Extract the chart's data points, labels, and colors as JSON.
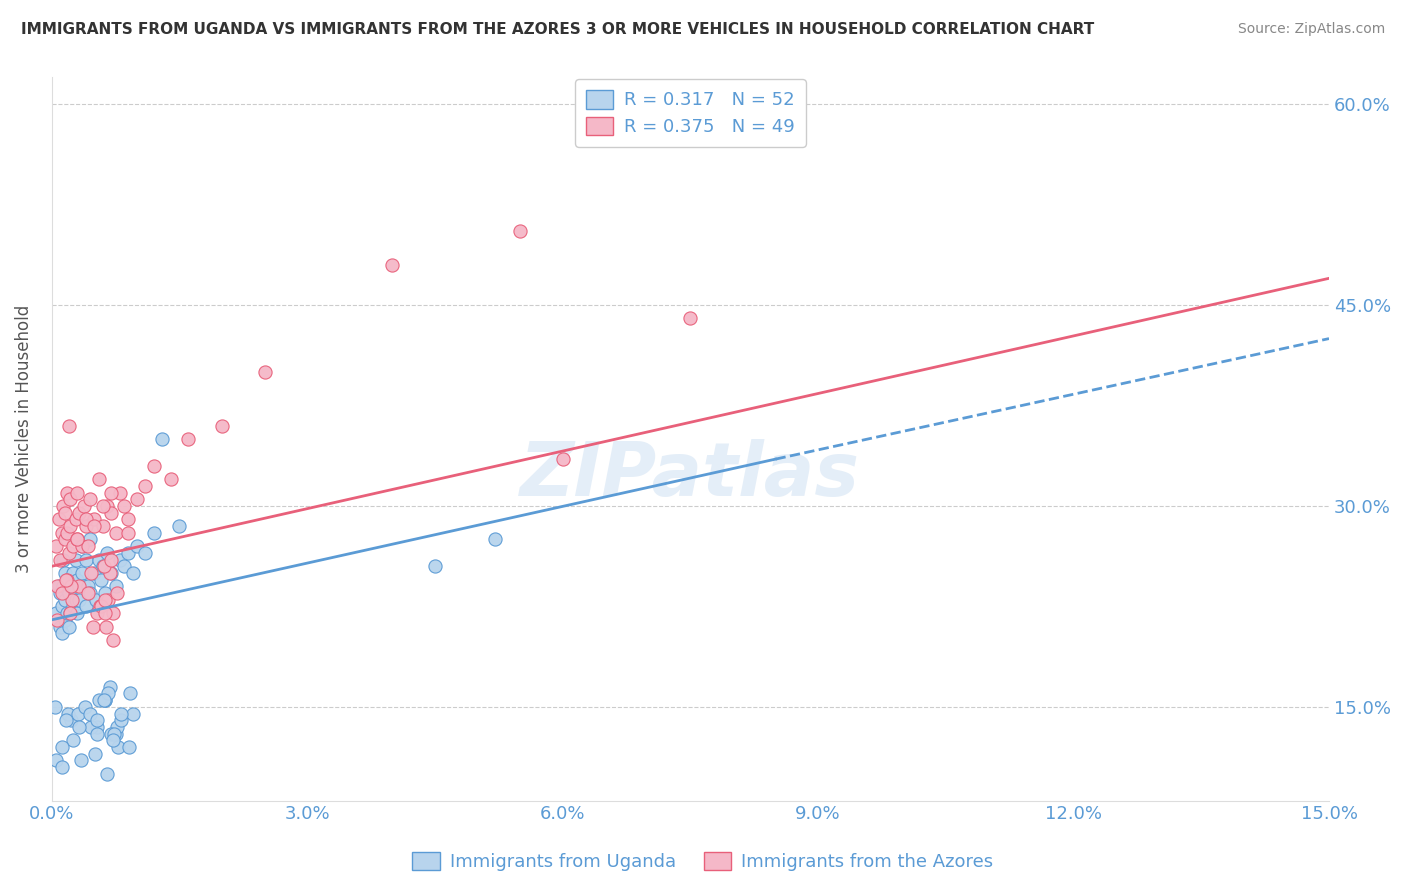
{
  "title": "IMMIGRANTS FROM UGANDA VS IMMIGRANTS FROM THE AZORES 3 OR MORE VEHICLES IN HOUSEHOLD CORRELATION CHART",
  "source": "Source: ZipAtlas.com",
  "ylabel": "3 or more Vehicles in Household",
  "xmin": 0.0,
  "xmax": 15.0,
  "ymin": 8.0,
  "ymax": 62.0,
  "yticks": [
    15.0,
    30.0,
    45.0,
    60.0
  ],
  "blue_R": 0.317,
  "blue_N": 52,
  "pink_R": 0.375,
  "pink_N": 49,
  "blue_color": "#b8d4ed",
  "pink_color": "#f5b8c8",
  "blue_line_color": "#5b9bd5",
  "pink_line_color": "#e8607a",
  "legend_label_blue": "Immigrants from Uganda",
  "legend_label_pink": "Immigrants from the Azores",
  "watermark": "ZIPatlas",
  "blue_line_x0": 0.0,
  "blue_line_y0": 21.5,
  "blue_line_x1": 8.5,
  "blue_line_y1": 33.5,
  "blue_dash_x0": 8.5,
  "blue_dash_y0": 33.5,
  "blue_dash_x1": 15.0,
  "blue_dash_y1": 42.5,
  "pink_line_x0": 0.0,
  "pink_line_y0": 25.5,
  "pink_line_x1": 15.0,
  "pink_line_y1": 47.0,
  "blue_scatter_x": [
    0.05,
    0.08,
    0.1,
    0.1,
    0.12,
    0.12,
    0.13,
    0.13,
    0.15,
    0.15,
    0.15,
    0.18,
    0.18,
    0.2,
    0.2,
    0.22,
    0.22,
    0.25,
    0.25,
    0.28,
    0.28,
    0.3,
    0.3,
    0.32,
    0.35,
    0.35,
    0.38,
    0.4,
    0.4,
    0.42,
    0.45,
    0.45,
    0.5,
    0.52,
    0.55,
    0.58,
    0.6,
    0.62,
    0.65,
    0.7,
    0.75,
    0.8,
    0.85,
    0.9,
    0.95,
    1.0,
    1.1,
    1.2,
    1.3,
    1.5,
    4.5,
    5.2
  ],
  "blue_scatter_y": [
    22.0,
    24.0,
    21.0,
    23.5,
    20.5,
    22.5,
    24.0,
    26.0,
    21.5,
    23.0,
    25.0,
    22.0,
    24.5,
    21.0,
    23.5,
    22.0,
    24.0,
    22.5,
    25.0,
    23.0,
    26.0,
    22.0,
    24.5,
    23.0,
    25.0,
    27.0,
    24.0,
    22.5,
    26.0,
    24.0,
    23.5,
    27.5,
    25.0,
    23.0,
    26.0,
    24.5,
    25.5,
    23.5,
    26.5,
    25.0,
    24.0,
    26.0,
    25.5,
    26.5,
    25.0,
    27.0,
    26.5,
    28.0,
    35.0,
    28.5,
    25.5,
    27.5
  ],
  "blue_scatter_y_low": [
    12.0,
    11.0,
    10.0,
    13.0,
    11.5,
    12.5,
    14.0,
    13.5,
    14.5,
    12.0,
    13.0,
    14.5,
    15.0,
    13.5,
    14.0,
    15.5,
    13.0,
    14.5,
    16.0,
    12.5,
    15.5,
    14.0,
    15.0,
    16.5,
    13.5,
    14.5,
    15.5,
    14.0,
    16.0,
    15.5,
    14.5,
    13.0,
    12.0,
    11.0,
    10.5,
    13.5
  ],
  "pink_scatter_x": [
    0.05,
    0.08,
    0.1,
    0.12,
    0.13,
    0.15,
    0.15,
    0.18,
    0.18,
    0.2,
    0.22,
    0.22,
    0.25,
    0.28,
    0.3,
    0.3,
    0.32,
    0.35,
    0.38,
    0.4,
    0.42,
    0.45,
    0.5,
    0.55,
    0.6,
    0.65,
    0.7,
    0.75,
    0.8,
    0.85,
    0.9,
    1.0,
    1.1,
    1.2,
    1.4,
    1.6,
    2.0,
    2.5,
    4.0,
    5.5,
    6.0,
    7.5,
    0.2,
    0.3,
    0.4,
    0.5,
    0.6,
    0.7,
    0.9
  ],
  "pink_scatter_y": [
    27.0,
    29.0,
    26.0,
    28.0,
    30.0,
    27.5,
    29.5,
    28.0,
    31.0,
    26.5,
    28.5,
    30.5,
    27.0,
    29.0,
    27.5,
    31.0,
    29.5,
    27.0,
    30.0,
    28.5,
    27.0,
    30.5,
    29.0,
    32.0,
    28.5,
    30.0,
    29.5,
    28.0,
    31.0,
    30.0,
    29.0,
    30.5,
    31.5,
    33.0,
    32.0,
    35.0,
    36.0,
    40.0,
    48.0,
    50.5,
    33.5,
    44.0,
    36.0,
    27.5,
    29.0,
    28.5,
    30.0,
    31.0,
    28.0
  ],
  "pink_scatter_y_low": [
    21.0,
    20.0,
    22.0,
    23.0,
    21.5,
    22.5,
    24.0,
    23.5,
    22.0,
    24.5,
    23.0,
    22.5,
    21.0,
    25.0,
    22.0,
    24.0,
    23.5,
    25.5,
    22.0,
    24.0,
    26.0,
    23.5,
    25.0,
    24.5,
    23.0
  ]
}
